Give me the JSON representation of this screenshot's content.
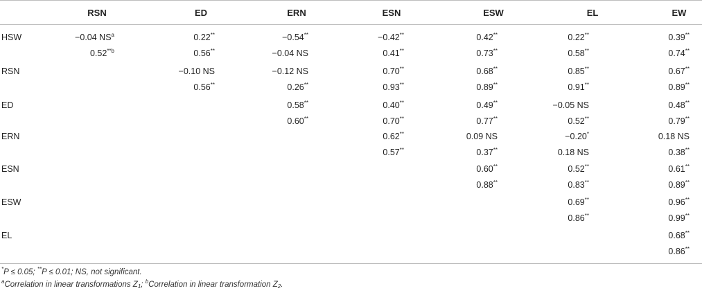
{
  "columns": [
    "RSN",
    "ED",
    "ERN",
    "ESN",
    "ESW",
    "EL",
    "EW"
  ],
  "rows": [
    {
      "label": "HSW",
      "cells": [
        [
          {
            "v": "−0.04 NS",
            "s": "a"
          },
          {
            "v": "0.52",
            "s": "**b"
          }
        ],
        [
          {
            "v": "0.22",
            "s": "**"
          },
          {
            "v": "0.56",
            "s": "**"
          }
        ],
        [
          {
            "v": "−0.54",
            "s": "**"
          },
          {
            "v": "−0.04 NS",
            "s": ""
          }
        ],
        [
          {
            "v": "−0.42",
            "s": "**"
          },
          {
            "v": "0.41",
            "s": "**"
          }
        ],
        [
          {
            "v": "0.42",
            "s": "**"
          },
          {
            "v": "0.73",
            "s": "**"
          }
        ],
        [
          {
            "v": "0.22",
            "s": "**"
          },
          {
            "v": "0.58",
            "s": "**"
          }
        ],
        [
          {
            "v": "0.39",
            "s": "**"
          },
          {
            "v": "0.74",
            "s": "**"
          }
        ]
      ]
    },
    {
      "label": "RSN",
      "cells": [
        [],
        [
          {
            "v": "−0.10 NS",
            "s": ""
          },
          {
            "v": "0.56",
            "s": "**"
          }
        ],
        [
          {
            "v": "−0.12 NS",
            "s": ""
          },
          {
            "v": "0.26",
            "s": "**"
          }
        ],
        [
          {
            "v": "0.70",
            "s": "**"
          },
          {
            "v": "0.93",
            "s": "**"
          }
        ],
        [
          {
            "v": "0.68",
            "s": "**"
          },
          {
            "v": "0.89",
            "s": "**"
          }
        ],
        [
          {
            "v": "0.85",
            "s": "**"
          },
          {
            "v": "0.91",
            "s": "**"
          }
        ],
        [
          {
            "v": "0.67",
            "s": "**"
          },
          {
            "v": "0.89",
            "s": "**"
          }
        ]
      ]
    },
    {
      "label": "ED",
      "cells": [
        [],
        [],
        [
          {
            "v": "0.58",
            "s": "**"
          },
          {
            "v": "0.60",
            "s": "**"
          }
        ],
        [
          {
            "v": "0.40",
            "s": "**"
          },
          {
            "v": "0.70",
            "s": "**"
          }
        ],
        [
          {
            "v": "0.49",
            "s": "**"
          },
          {
            "v": "0.77",
            "s": "**"
          }
        ],
        [
          {
            "v": "−0.05 NS",
            "s": ""
          },
          {
            "v": "0.52",
            "s": "**"
          }
        ],
        [
          {
            "v": "0.48",
            "s": "**"
          },
          {
            "v": "0.79",
            "s": "**"
          }
        ]
      ]
    },
    {
      "label": "ERN",
      "cells": [
        [],
        [],
        [],
        [
          {
            "v": "0.62",
            "s": "**"
          },
          {
            "v": "0.57",
            "s": "**"
          }
        ],
        [
          {
            "v": "0.09 NS",
            "s": ""
          },
          {
            "v": "0.37",
            "s": "**"
          }
        ],
        [
          {
            "v": "−0.20",
            "s": "*"
          },
          {
            "v": "0.18 NS",
            "s": ""
          }
        ],
        [
          {
            "v": "0.18 NS",
            "s": ""
          },
          {
            "v": "0.38",
            "s": "**"
          }
        ]
      ]
    },
    {
      "label": "ESN",
      "cells": [
        [],
        [],
        [],
        [],
        [
          {
            "v": "0.60",
            "s": "**"
          },
          {
            "v": "0.88",
            "s": "**"
          }
        ],
        [
          {
            "v": "0.52",
            "s": "**"
          },
          {
            "v": "0.83",
            "s": "**"
          }
        ],
        [
          {
            "v": "0.61",
            "s": "**"
          },
          {
            "v": "0.89",
            "s": "**"
          }
        ]
      ]
    },
    {
      "label": "ESW",
      "cells": [
        [],
        [],
        [],
        [],
        [],
        [
          {
            "v": "0.69",
            "s": "**"
          },
          {
            "v": "0.86",
            "s": "**"
          }
        ],
        [
          {
            "v": "0.96",
            "s": "**"
          },
          {
            "v": "0.99",
            "s": "**"
          }
        ]
      ]
    },
    {
      "label": "EL",
      "cells": [
        [],
        [],
        [],
        [],
        [],
        [],
        [
          {
            "v": "0.68",
            "s": "**"
          },
          {
            "v": "0.86",
            "s": "**"
          }
        ]
      ]
    }
  ],
  "footnotes": {
    "line1_sup": "*",
    "line1_text": "P ≤ 0.05; ",
    "line1_sup2": "**",
    "line1_text2": "P ≤ 0.01; NS, not significant.",
    "line2_sup_a": "a",
    "line2_text_a": "Correlation in linear transformations Z",
    "line2_sub_a": "1",
    "line2_sep": "; ",
    "line2_sup_b": "b",
    "line2_text_b": "Correlation in linear transformation Z",
    "line2_sub_b": "2",
    "line2_end": "."
  }
}
